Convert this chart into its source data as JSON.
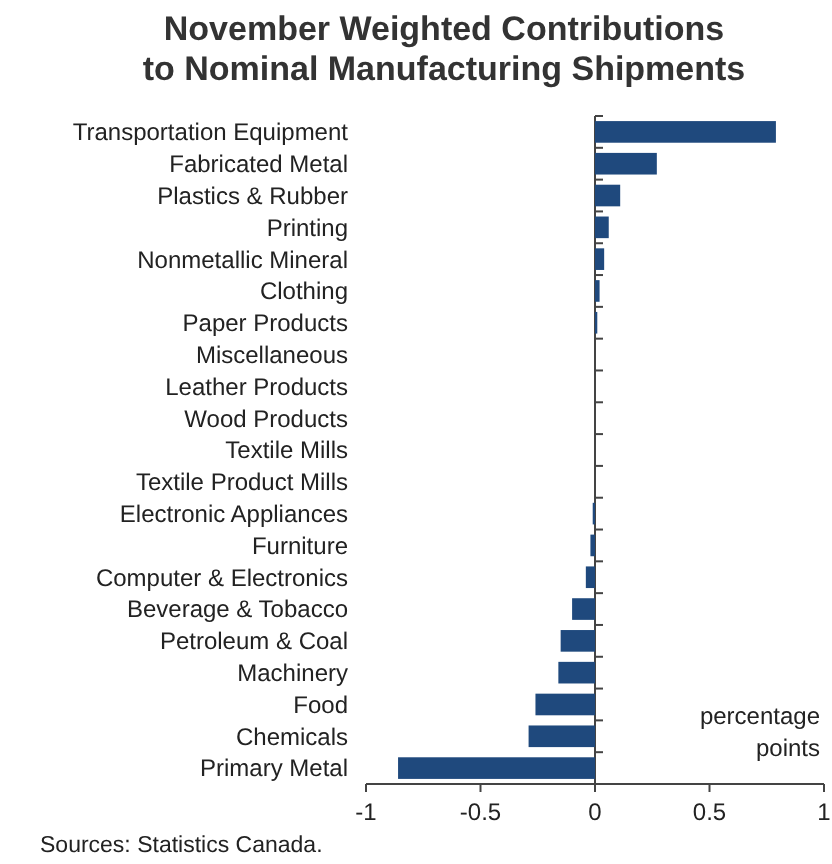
{
  "chart_data": {
    "type": "bar",
    "orientation": "horizontal",
    "title": "November Weighted Contributions\nto Nominal Manufacturing Shipments",
    "categories": [
      "Transportation Equipment",
      "Fabricated Metal",
      "Plastics & Rubber",
      "Printing",
      "Nonmetallic Mineral",
      "Clothing",
      "Paper Products",
      "Miscellaneous",
      "Leather Products",
      "Wood Products",
      "Textile Mills",
      "Textile Product Mills",
      "Electronic Appliances",
      "Furniture",
      "Computer & Electronics",
      "Beverage & Tobacco",
      "Petroleum & Coal",
      "Machinery",
      "Food",
      "Chemicals",
      "Primary Metal"
    ],
    "values": [
      0.79,
      0.27,
      0.11,
      0.06,
      0.04,
      0.02,
      0.01,
      0,
      0,
      0,
      0,
      0,
      -0.01,
      -0.02,
      -0.04,
      -0.1,
      -0.15,
      -0.16,
      -0.26,
      -0.29,
      -0.86
    ],
    "color": "#1f497d",
    "xlim": [
      -1,
      1
    ],
    "xticks": [
      -1,
      -0.5,
      0,
      0.5,
      1
    ],
    "xlabel": "percentage\npoints",
    "annotations": [
      "Sources: Statistics Canada."
    ]
  }
}
